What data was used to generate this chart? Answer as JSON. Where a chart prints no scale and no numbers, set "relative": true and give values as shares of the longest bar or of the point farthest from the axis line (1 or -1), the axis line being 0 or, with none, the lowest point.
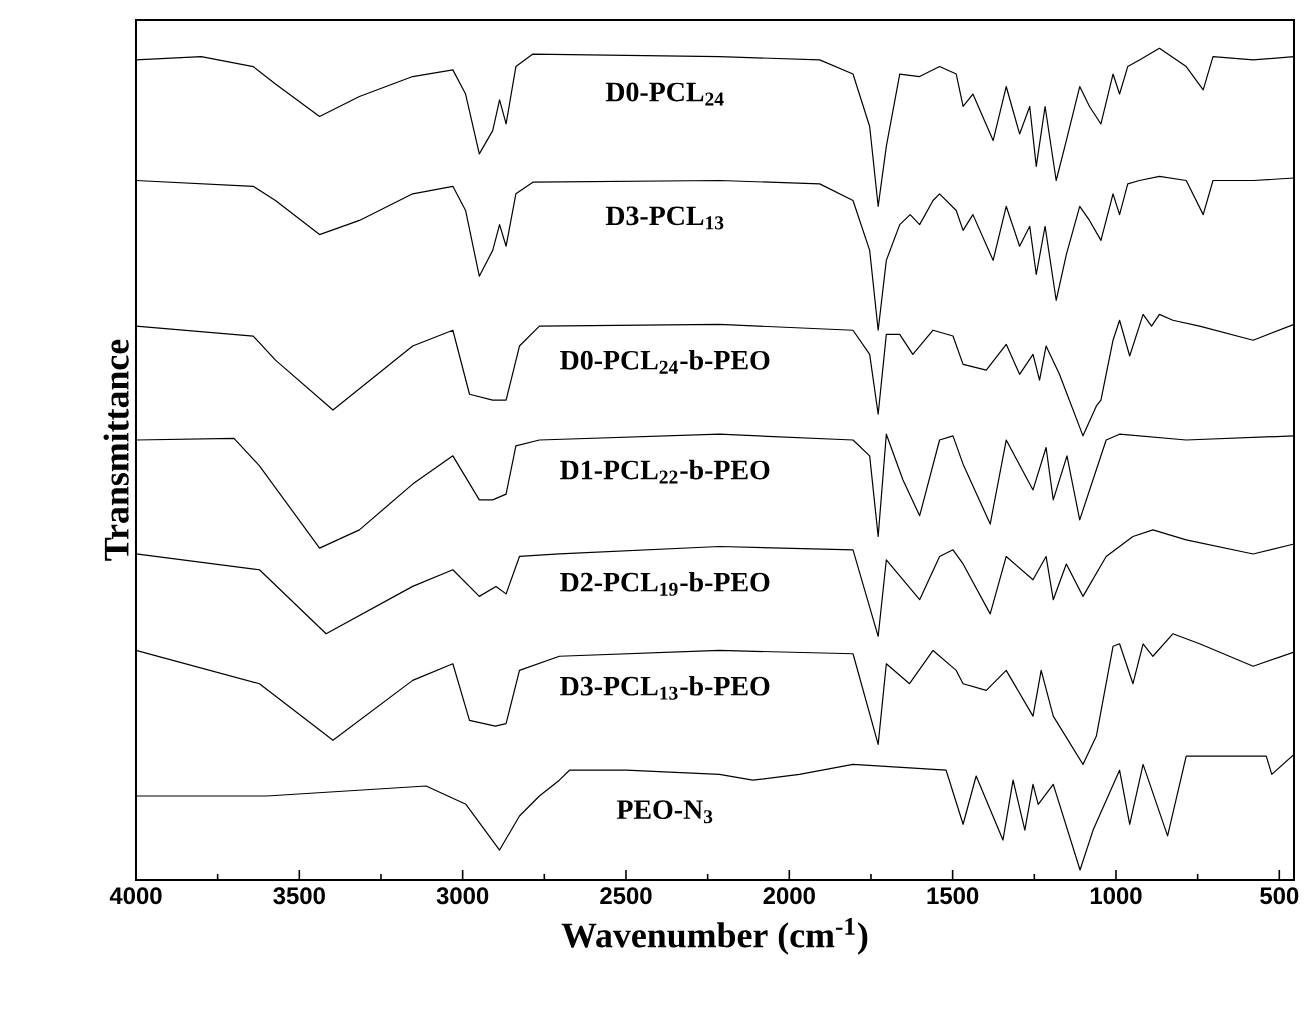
{
  "chart_data": {
    "type": "line",
    "relative": true,
    "xlabel": "Wavenumber (cm$^{-1}$)",
    "ylabel": "Transmittance",
    "xlim": [
      4000,
      455
    ],
    "xticks": [
      4000,
      3500,
      3000,
      2500,
      2000,
      1500,
      1000,
      500,
      {
        "value": 3750,
        "label": null
      },
      {
        "value": 3250,
        "label": null
      },
      {
        "value": 2750,
        "label": null
      },
      {
        "value": 2250,
        "label": null
      },
      {
        "value": 1750,
        "label": null
      },
      {
        "value": 1250,
        "label": null
      },
      {
        "value": 750,
        "label": null
      }
    ],
    "tick_labels": "x",
    "legend": false,
    "marker": "none",
    "line_style": "solid",
    "series": [
      {
        "name": "D0-PCL$_{24}$",
        "color": "#000000",
        "x": [
          4000,
          3800,
          3641,
          3573,
          3438,
          3316,
          3153,
          3030,
          2991,
          2949,
          2908,
          2887,
          2867,
          2837,
          2785,
          2214,
          1907,
          1805,
          1754,
          1728,
          1703,
          1662,
          1601,
          1540,
          1489,
          1468,
          1438,
          1376,
          1336,
          1295,
          1264,
          1244,
          1217,
          1183,
          1152,
          1111,
          1081,
          1046,
          1009,
          989,
          964,
          928,
          867,
          785,
          733,
          703,
          580,
          455
        ],
        "values": [
          0.986,
          0.99,
          0.978,
          0.957,
          0.918,
          0.942,
          0.966,
          0.974,
          0.945,
          0.873,
          0.901,
          0.938,
          0.909,
          0.978,
          0.993,
          0.99,
          0.986,
          0.969,
          0.906,
          0.81,
          0.882,
          0.969,
          0.966,
          0.978,
          0.969,
          0.93,
          0.945,
          0.889,
          0.954,
          0.897,
          0.93,
          0.858,
          0.93,
          0.841,
          0.889,
          0.954,
          0.93,
          0.909,
          0.969,
          0.945,
          0.978,
          0.986,
          1.0,
          0.978,
          0.95,
          0.99,
          0.986,
          0.99
        ]
      },
      {
        "name": "D3-PCL$_{13}$",
        "color": "#000000",
        "x": [
          4000,
          3641,
          3573,
          3438,
          3316,
          3153,
          3030,
          2991,
          2949,
          2908,
          2887,
          2867,
          2837,
          2785,
          2214,
          1907,
          1805,
          1754,
          1728,
          1703,
          1662,
          1630,
          1601,
          1560,
          1540,
          1489,
          1468,
          1438,
          1376,
          1336,
          1295,
          1264,
          1244,
          1217,
          1183,
          1152,
          1111,
          1081,
          1046,
          1009,
          989,
          964,
          928,
          867,
          785,
          733,
          703,
          580,
          455
        ],
        "values": [
          0.841,
          0.834,
          0.817,
          0.776,
          0.793,
          0.825,
          0.834,
          0.805,
          0.726,
          0.757,
          0.788,
          0.762,
          0.825,
          0.839,
          0.841,
          0.837,
          0.817,
          0.757,
          0.661,
          0.745,
          0.788,
          0.8,
          0.788,
          0.817,
          0.825,
          0.805,
          0.781,
          0.8,
          0.745,
          0.81,
          0.762,
          0.786,
          0.728,
          0.786,
          0.697,
          0.752,
          0.81,
          0.793,
          0.769,
          0.825,
          0.8,
          0.837,
          0.841,
          0.846,
          0.841,
          0.8,
          0.841,
          0.841,
          0.844
        ]
      },
      {
        "name": "D0-PCL$_{24}$-b-PEO",
        "color": "#000000",
        "x": [
          4000,
          3641,
          3573,
          3397,
          3153,
          3030,
          2979,
          2908,
          2867,
          2826,
          2765,
          2214,
          1805,
          1754,
          1728,
          1703,
          1662,
          1622,
          1560,
          1499,
          1468,
          1397,
          1336,
          1295,
          1254,
          1234,
          1214,
          1173,
          1101,
          1060,
          1046,
          1009,
          989,
          958,
          917,
          891,
          867,
          826,
          744,
          580,
          455
        ],
        "values": [
          0.666,
          0.654,
          0.625,
          0.565,
          0.642,
          0.661,
          0.584,
          0.577,
          0.577,
          0.642,
          0.666,
          0.668,
          0.661,
          0.632,
          0.56,
          0.656,
          0.656,
          0.632,
          0.661,
          0.654,
          0.62,
          0.613,
          0.644,
          0.608,
          0.632,
          0.601,
          0.642,
          0.608,
          0.534,
          0.57,
          0.577,
          0.649,
          0.673,
          0.63,
          0.68,
          0.666,
          0.68,
          0.673,
          0.666,
          0.649,
          0.668
        ]
      },
      {
        "name": "D1-PCL$_{22}$-b-PEO",
        "color": "#000000",
        "x": [
          4000,
          3700,
          3622,
          3438,
          3316,
          3153,
          3030,
          2949,
          2908,
          2867,
          2837,
          2765,
          2214,
          1805,
          1754,
          1728,
          1703,
          1652,
          1601,
          1540,
          1499,
          1468,
          1385,
          1336,
          1254,
          1214,
          1192,
          1150,
          1111,
          1030,
          989,
          785,
          455
        ],
        "values": [
          0.529,
          0.531,
          0.498,
          0.399,
          0.421,
          0.476,
          0.51,
          0.457,
          0.457,
          0.464,
          0.522,
          0.529,
          0.536,
          0.529,
          0.51,
          0.413,
          0.536,
          0.481,
          0.438,
          0.529,
          0.534,
          0.5,
          0.428,
          0.529,
          0.469,
          0.52,
          0.457,
          0.51,
          0.433,
          0.529,
          0.536,
          0.529,
          0.534
        ]
      },
      {
        "name": "D2-PCL$_{19}$-b-PEO",
        "color": "#000000",
        "x": [
          4000,
          3622,
          3418,
          3153,
          3030,
          2949,
          2898,
          2867,
          2826,
          2704,
          2214,
          1805,
          1728,
          1703,
          1601,
          1540,
          1499,
          1468,
          1385,
          1336,
          1254,
          1214,
          1192,
          1152,
          1101,
          1030,
          948,
          887,
          785,
          580,
          455
        ],
        "values": [
          0.392,
          0.373,
          0.296,
          0.353,
          0.373,
          0.341,
          0.353,
          0.344,
          0.389,
          0.392,
          0.401,
          0.397,
          0.293,
          0.385,
          0.337,
          0.389,
          0.397,
          0.38,
          0.32,
          0.389,
          0.361,
          0.389,
          0.337,
          0.38,
          0.341,
          0.389,
          0.413,
          0.421,
          0.409,
          0.392,
          0.404
        ]
      },
      {
        "name": "D3-PCL$_{13}$-b-PEO",
        "color": "#000000",
        "x": [
          4000,
          3622,
          3397,
          3153,
          3030,
          2979,
          2900,
          2867,
          2826,
          2704,
          2214,
          1805,
          1728,
          1703,
          1632,
          1560,
          1489,
          1468,
          1397,
          1336,
          1254,
          1229,
          1192,
          1101,
          1060,
          1009,
          989,
          948,
          917,
          887,
          826,
          744,
          580,
          455
        ],
        "values": [
          0.276,
          0.236,
          0.168,
          0.24,
          0.26,
          0.192,
          0.185,
          0.188,
          0.252,
          0.269,
          0.276,
          0.272,
          0.163,
          0.26,
          0.236,
          0.276,
          0.252,
          0.236,
          0.228,
          0.252,
          0.197,
          0.252,
          0.197,
          0.139,
          0.173,
          0.281,
          0.284,
          0.236,
          0.284,
          0.269,
          0.296,
          0.284,
          0.257,
          0.274
        ]
      },
      {
        "name": "PEO-N$_{3}$",
        "color": "#000000",
        "x": [
          4000,
          3600,
          3112,
          2990,
          2887,
          2826,
          2765,
          2704,
          2673,
          2500,
          2214,
          2112,
          1969,
          1805,
          1520,
          1468,
          1428,
          1346,
          1315,
          1279,
          1254,
          1238,
          1192,
          1110,
          1070,
          989,
          958,
          917,
          842,
          785,
          540,
          523,
          455
        ],
        "values": [
          0.101,
          0.101,
          0.113,
          0.091,
          0.036,
          0.077,
          0.101,
          0.12,
          0.132,
          0.132,
          0.127,
          0.12,
          0.127,
          0.139,
          0.132,
          0.067,
          0.125,
          0.048,
          0.12,
          0.06,
          0.115,
          0.091,
          0.115,
          0.012,
          0.06,
          0.132,
          0.067,
          0.139,
          0.053,
          0.149,
          0.149,
          0.127,
          0.151
        ]
      }
    ]
  }
}
